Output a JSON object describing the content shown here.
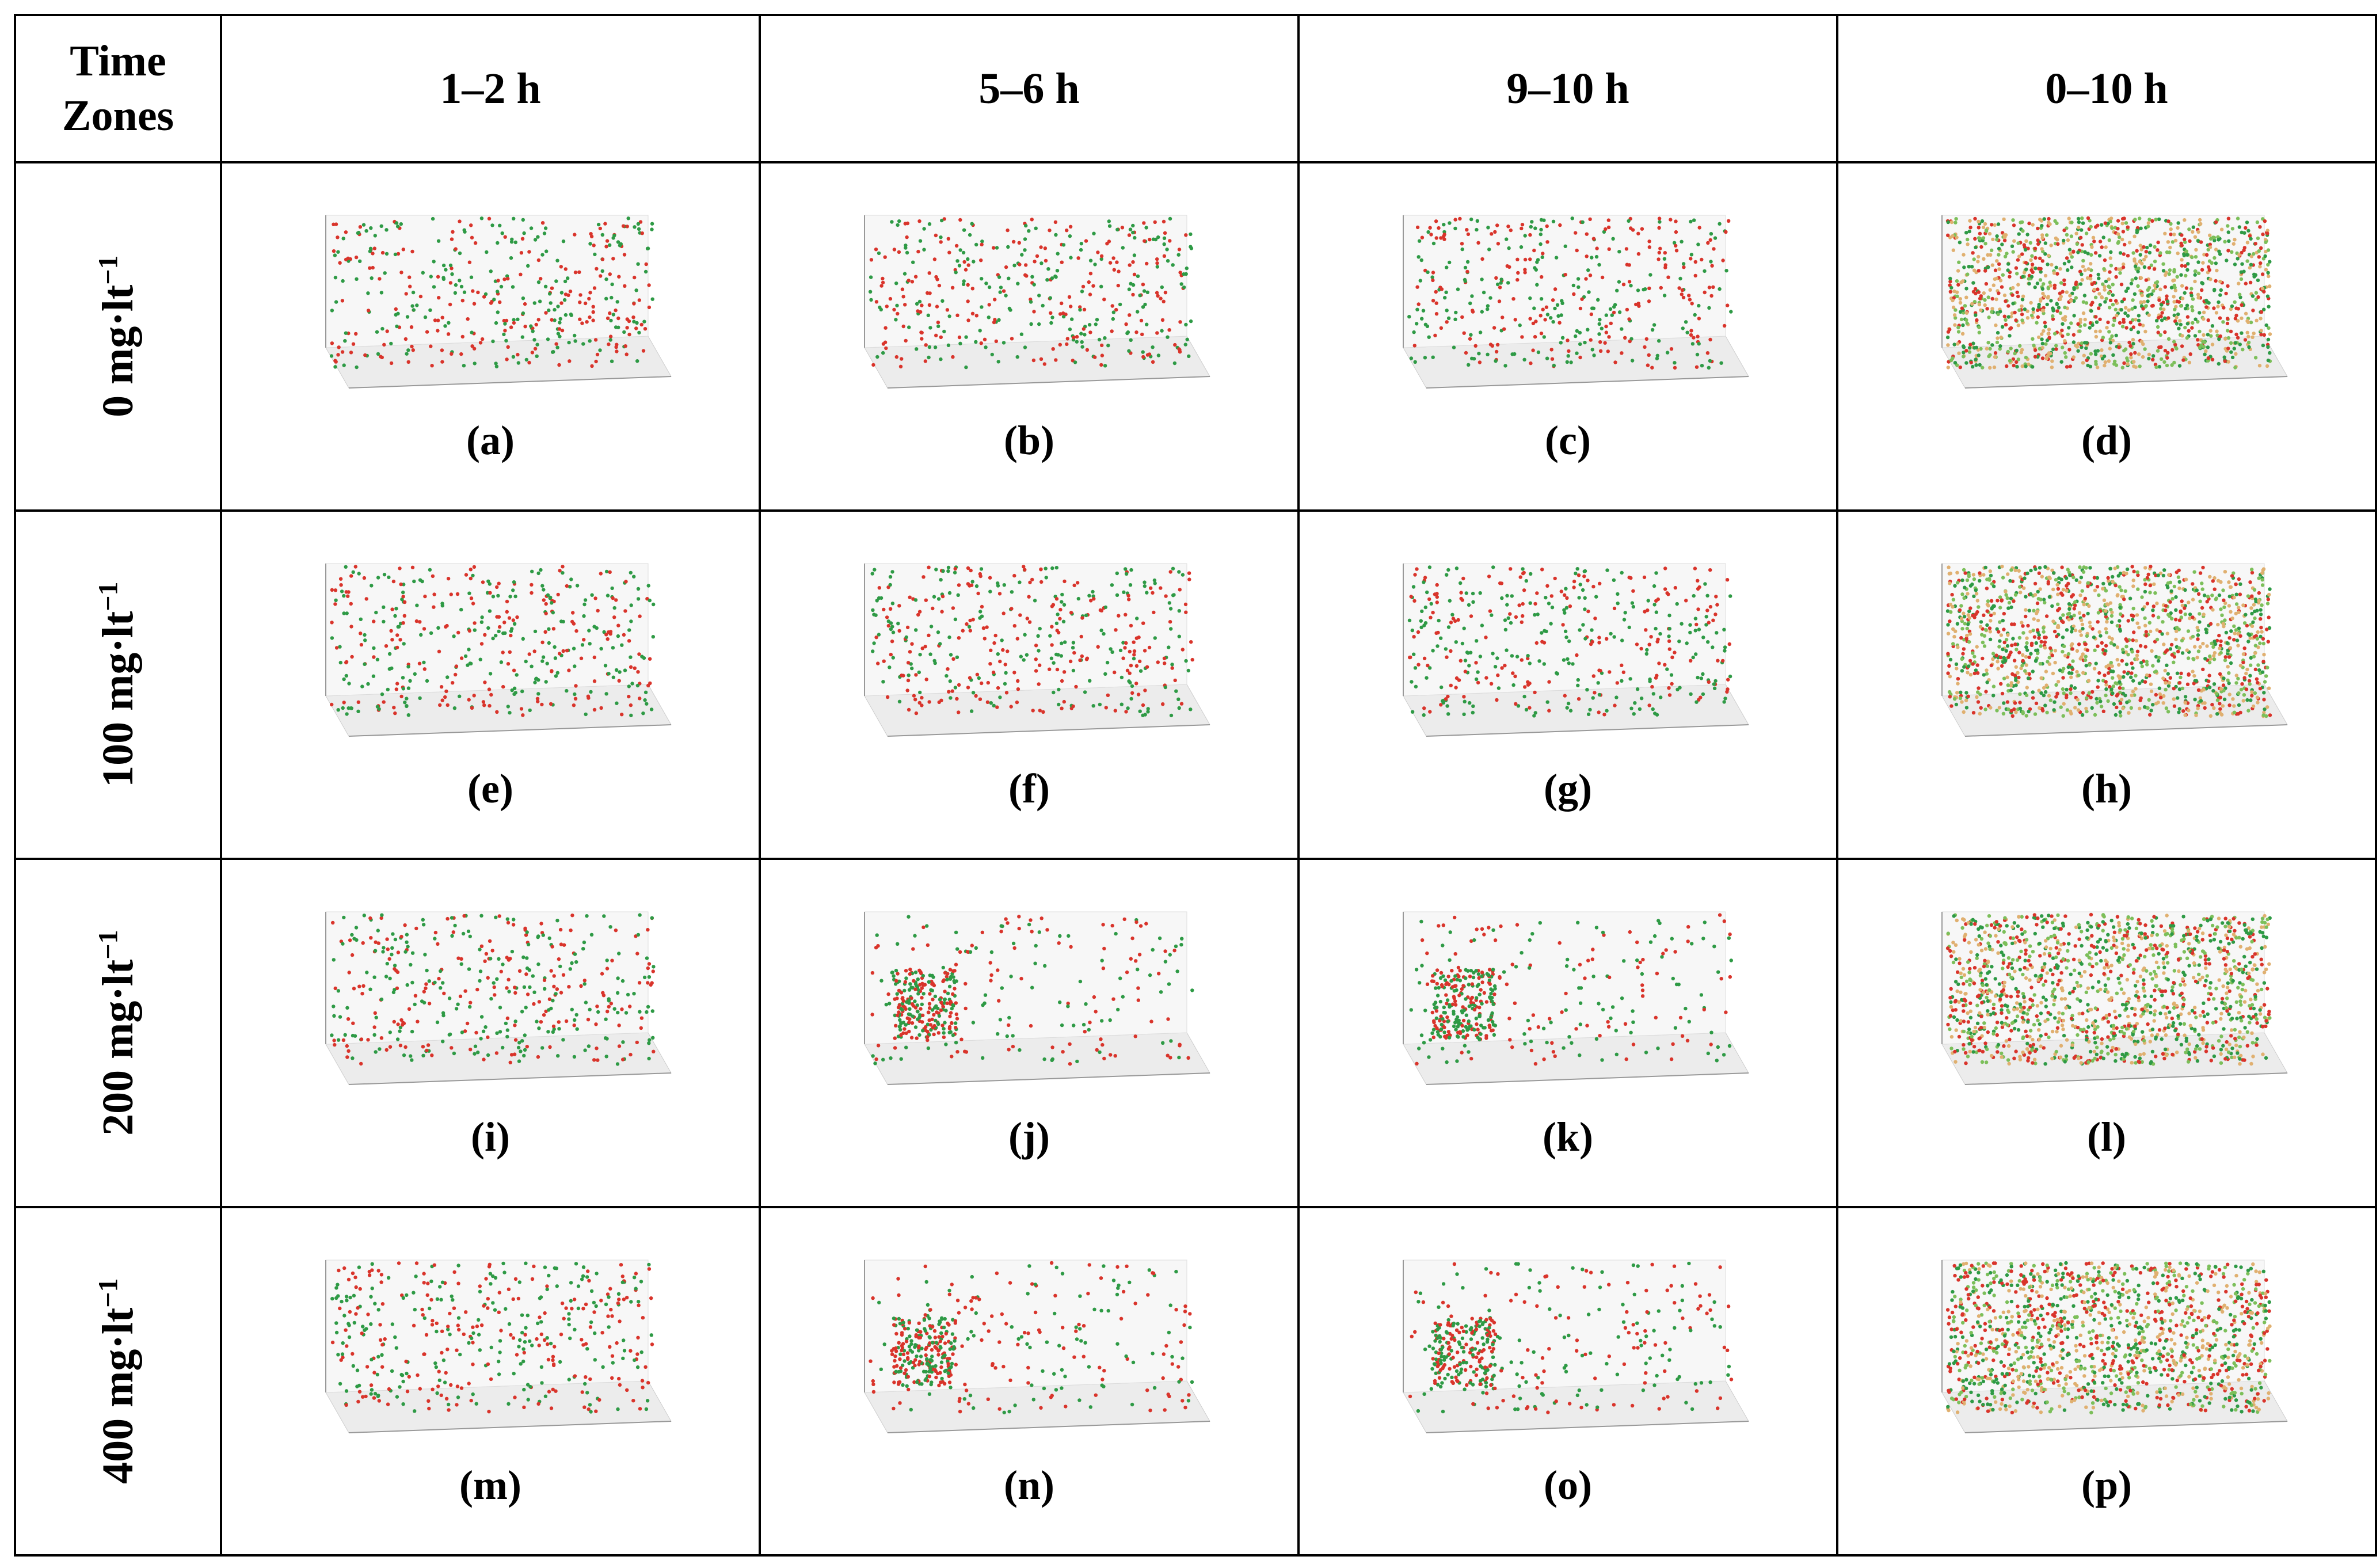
{
  "header": {
    "corner": "Time Zones",
    "columns": [
      "1–2 h",
      "5–6 h",
      "9–10 h",
      "0–10 h"
    ]
  },
  "rows": [
    {
      "label": "0 mg·lt",
      "label_sup": "−1",
      "captions": [
        "(a)",
        "(b)",
        "(c)",
        "(d)"
      ]
    },
    {
      "label": "100 mg·lt",
      "label_sup": "−1",
      "captions": [
        "(e)",
        "(f)",
        "(g)",
        "(h)"
      ]
    },
    {
      "label": "200 mg·lt",
      "label_sup": "−1",
      "captions": [
        "(i)",
        "(j)",
        "(k)",
        "(l)"
      ]
    },
    {
      "label": "400 mg·lt",
      "label_sup": "−1",
      "captions": [
        "(m)",
        "(n)",
        "(o)",
        "(p)"
      ]
    }
  ]
}
